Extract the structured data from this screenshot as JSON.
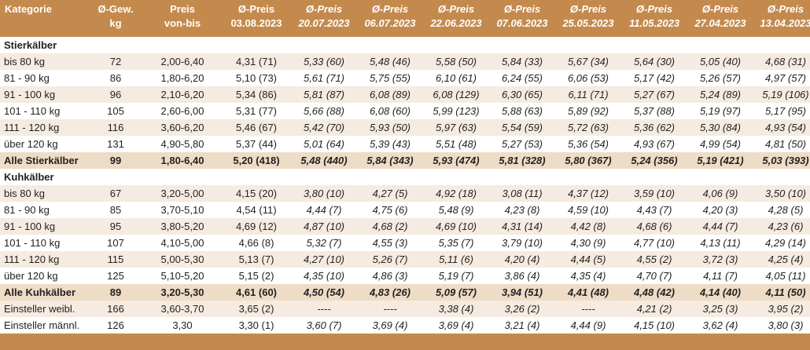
{
  "headers": [
    {
      "l1": "Kategorie",
      "l2": ""
    },
    {
      "l1": "Ø-Gew.",
      "l2": "kg"
    },
    {
      "l1": "Preis",
      "l2": "von-bis"
    },
    {
      "l1": "Ø-Preis",
      "l2": "03.08.2023"
    },
    {
      "l1": "Ø-Preis",
      "l2": "20.07.2023"
    },
    {
      "l1": "Ø-Preis",
      "l2": "06.07.2023"
    },
    {
      "l1": "Ø-Preis",
      "l2": "22.06.2023"
    },
    {
      "l1": "Ø-Preis",
      "l2": "07.06.2023"
    },
    {
      "l1": "Ø-Preis",
      "l2": "25.05.2023"
    },
    {
      "l1": "Ø-Preis",
      "l2": "11.05.2023"
    },
    {
      "l1": "Ø-Preis",
      "l2": "27.04.2023"
    },
    {
      "l1": "Ø-Preis",
      "l2": "13.04.2023"
    }
  ],
  "colors": {
    "header_bg": "#c48a4d",
    "header_text": "#ffffff",
    "row_odd": "#f6ebe0",
    "row_even": "#ffffff",
    "total_bg": "#eedcc6"
  },
  "rows": [
    {
      "type": "section",
      "cells": [
        "Stierkälber"
      ]
    },
    {
      "type": "odd",
      "cells": [
        "bis 80 kg",
        "72",
        "2,00-6,40",
        "4,31 (71)",
        "5,33 (60)",
        "5,48 (46)",
        "5,58 (50)",
        "5,84 (33)",
        "5,67 (34)",
        "5,64 (30)",
        "5,05 (40)",
        "4,68 (31)"
      ]
    },
    {
      "type": "even",
      "cells": [
        "81 - 90 kg",
        "86",
        "1,80-6,20",
        "5,10 (73)",
        "5,61 (71)",
        "5,75 (55)",
        "6,10 (61)",
        "6,24 (55)",
        "6,06 (53)",
        "5,17 (42)",
        "5,26 (57)",
        "4,97 (57)"
      ]
    },
    {
      "type": "odd",
      "cells": [
        "91 - 100 kg",
        "96",
        "2,10-6,20",
        "5,34 (86)",
        "5,81 (87)",
        "6,08 (89)",
        "6,08 (129)",
        "6,30 (65)",
        "6,11 (71)",
        "5,27 (67)",
        "5,24 (89)",
        "5,19 (106)"
      ]
    },
    {
      "type": "even",
      "cells": [
        "101 - 110 kg",
        "105",
        "2,60-6,00",
        "5,31 (77)",
        "5,66 (88)",
        "6,08 (60)",
        "5,99 (123)",
        "5,88 (63)",
        "5,89 (92)",
        "5,37 (88)",
        "5,19 (97)",
        "5,17 (95)"
      ]
    },
    {
      "type": "odd",
      "cells": [
        "111 - 120 kg",
        "116",
        "3,60-6,20",
        "5,46 (67)",
        "5,42 (70)",
        "5,93 (50)",
        "5,97 (63)",
        "5,54 (59)",
        "5,72 (63)",
        "5,36 (62)",
        "5,30 (84)",
        "4,93 (54)"
      ]
    },
    {
      "type": "even",
      "cells": [
        "über 120 kg",
        "131",
        "4,90-5,80",
        "5,37 (44)",
        "5,01 (64)",
        "5,39 (43)",
        "5,51 (48)",
        "5,27 (53)",
        "5,36 (54)",
        "4,93 (67)",
        "4,99 (54)",
        "4,81 (50)"
      ]
    },
    {
      "type": "total",
      "cells": [
        "Alle Stierkälber",
        "99",
        "1,80-6,40",
        "5,20 (418)",
        "5,48 (440)",
        "5,84 (343)",
        "5,93 (474)",
        "5,81 (328)",
        "5,80 (367)",
        "5,24 (356)",
        "5,19 (421)",
        "5,03 (393)"
      ]
    },
    {
      "type": "section",
      "cells": [
        "Kuhkälber"
      ]
    },
    {
      "type": "odd",
      "cells": [
        "bis 80 kg",
        "67",
        "3,20-5,00",
        "4,15 (20)",
        "3,80 (10)",
        "4,27 (5)",
        "4,92 (18)",
        "3,08 (11)",
        "4,37 (12)",
        "3,59 (10)",
        "4,06 (9)",
        "3,50 (10)"
      ]
    },
    {
      "type": "even",
      "cells": [
        "81 - 90 kg",
        "85",
        "3,70-5,10",
        "4,54 (11)",
        "4,44 (7)",
        "4,75 (6)",
        "5,48 (9)",
        "4,23 (8)",
        "4,59 (10)",
        "4,43 (7)",
        "4,20 (3)",
        "4,28 (5)"
      ]
    },
    {
      "type": "odd",
      "cells": [
        "91 - 100 kg",
        "95",
        "3,80-5,20",
        "4,69 (12)",
        "4,87 (10)",
        "4,68 (2)",
        "4,69 (10)",
        "4,31 (14)",
        "4,42 (8)",
        "4,68 (6)",
        "4,44 (7)",
        "4,23 (6)"
      ]
    },
    {
      "type": "even",
      "cells": [
        "101 - 110 kg",
        "107",
        "4,10-5,00",
        "4,66 (8)",
        "5,32 (7)",
        "4,55 (3)",
        "5,35 (7)",
        "3,79 (10)",
        "4,30 (9)",
        "4,77 (10)",
        "4,13 (11)",
        "4,29 (14)"
      ]
    },
    {
      "type": "odd",
      "cells": [
        "111 - 120 kg",
        "115",
        "5,00-5,30",
        "5,13 (7)",
        "4,27 (10)",
        "5,26 (7)",
        "5,11 (6)",
        "4,20 (4)",
        "4,44 (5)",
        "4,55 (2)",
        "3,72 (3)",
        "4,25 (4)"
      ]
    },
    {
      "type": "even",
      "cells": [
        "über 120 kg",
        "125",
        "5,10-5,20",
        "5,15 (2)",
        "4,35 (10)",
        "4,86 (3)",
        "5,19 (7)",
        "3,86 (4)",
        "4,35 (4)",
        "4,70 (7)",
        "4,11 (7)",
        "4,05 (11)"
      ]
    },
    {
      "type": "total",
      "cells": [
        "Alle Kuhkälber",
        "89",
        "3,20-5,30",
        "4,61 (60)",
        "4,50 (54)",
        "4,83 (26)",
        "5,09 (57)",
        "3,94 (51)",
        "4,41 (48)",
        "4,48 (42)",
        "4,14 (40)",
        "4,11 (50)"
      ]
    },
    {
      "type": "odd",
      "cells": [
        "Einsteller weibl.",
        "166",
        "3,60-3,70",
        "3,65 (2)",
        "----",
        "----",
        "3,38 (4)",
        "3,26 (2)",
        "----",
        "4,21 (2)",
        "3,25 (3)",
        "3,95 (2)"
      ]
    },
    {
      "type": "even",
      "cells": [
        "Einsteller männl.",
        "126",
        "3,30",
        "3,30 (1)",
        "3,60 (7)",
        "3,69 (4)",
        "3,69 (4)",
        "3,21 (4)",
        "4,44 (9)",
        "4,15 (10)",
        "3,62 (4)",
        "3,80 (3)"
      ]
    }
  ]
}
